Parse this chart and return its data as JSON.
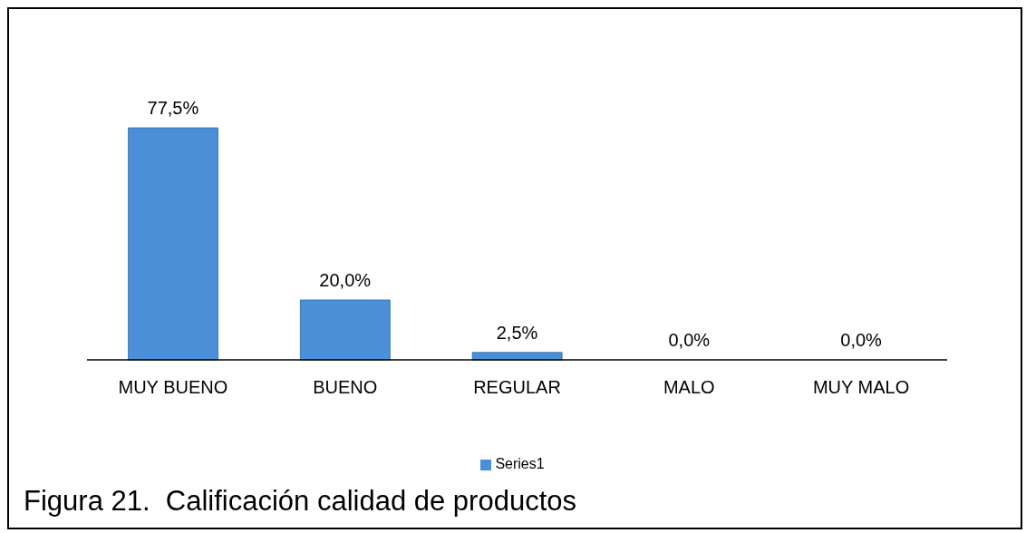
{
  "chart_data": {
    "type": "bar",
    "categories": [
      "MUY BUENO",
      "BUENO",
      "REGULAR",
      "MALO",
      "MUY MALO"
    ],
    "series": [
      {
        "name": "Series1",
        "color": "#4a8fd8",
        "values": [
          77.5,
          20.0,
          2.5,
          0.0,
          0.0
        ],
        "value_labels": [
          "77,5%",
          "20,0%",
          "2,5%",
          "0,0%",
          "0,0%"
        ]
      }
    ],
    "legend": "bottom",
    "annotations": [
      "Figura 21.  Calificación calidad de productos"
    ]
  }
}
